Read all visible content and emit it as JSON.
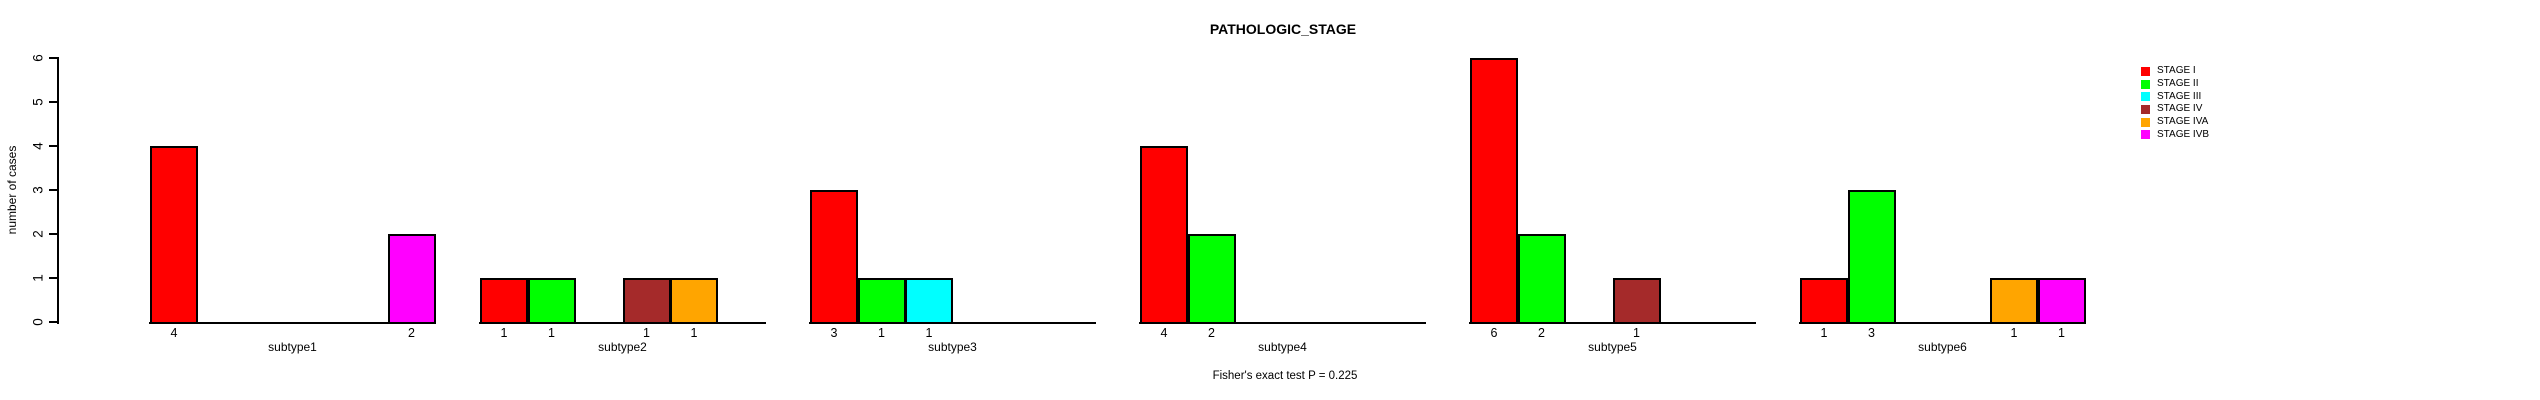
{
  "title": "PATHOLOGIC_STAGE",
  "footer": "Fisher's exact test P = 0.225",
  "chart_data": {
    "type": "bar",
    "title": "PATHOLOGIC_STAGE",
    "xlabel": "",
    "ylabel": "number of cases",
    "categories": [
      "subtype1",
      "subtype2",
      "subtype3",
      "subtype4",
      "subtype5",
      "subtype6"
    ],
    "series": [
      {
        "name": "STAGE I",
        "color": "#FF0000",
        "values": [
          4,
          1,
          3,
          4,
          6,
          1
        ]
      },
      {
        "name": "STAGE II",
        "color": "#00FF00",
        "values": [
          0,
          1,
          1,
          2,
          2,
          3
        ]
      },
      {
        "name": "STAGE III",
        "color": "#00FFFF",
        "values": [
          0,
          0,
          1,
          0,
          0,
          0
        ]
      },
      {
        "name": "STAGE IV",
        "color": "#A52A2A",
        "values": [
          0,
          1,
          0,
          0,
          1,
          0
        ]
      },
      {
        "name": "STAGE IVA",
        "color": "#FFA500",
        "values": [
          0,
          1,
          0,
          0,
          0,
          1
        ]
      },
      {
        "name": "STAGE IVB",
        "color": "#FF00FF",
        "values": [
          2,
          0,
          0,
          0,
          0,
          1
        ]
      }
    ],
    "ylim": [
      0,
      6
    ],
    "yticks": [
      0,
      1,
      2,
      3,
      4,
      5,
      6
    ],
    "bar_value_labels": true,
    "zero_bars_hidden": true,
    "grid": false,
    "legend_position": "right",
    "annotation": "Fisher's exact test P = 0.225",
    "axis_color": "#000000",
    "bar_border_color": "#000000"
  }
}
